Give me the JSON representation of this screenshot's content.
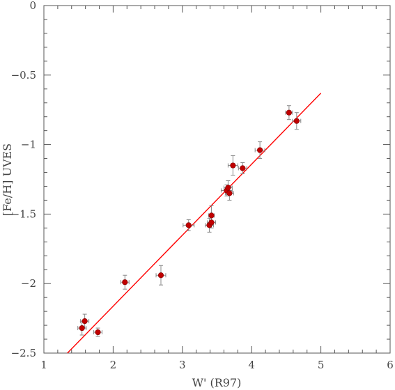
{
  "chart_data": {
    "type": "scatter",
    "title": "",
    "xlabel": "W' (R97)",
    "ylabel": "[Fe/H] UVES",
    "xlim": [
      1,
      6
    ],
    "ylim": [
      -2.5,
      0
    ],
    "grid": false,
    "x_ticks": [
      1,
      2,
      3,
      4,
      5,
      6
    ],
    "y_ticks": [
      0,
      -0.5,
      -1,
      -1.5,
      -2,
      -2.5
    ],
    "x_tick_labels": [
      "1",
      "2",
      "3",
      "4",
      "5",
      "6"
    ],
    "y_tick_labels": [
      "0",
      "−0.5",
      "−1",
      "−1.5",
      "−2",
      "−2.5"
    ],
    "colors": {
      "point": "#c00000",
      "line": "#ff0000",
      "errorbar": "#888888",
      "axis": "#555555"
    },
    "series": [
      {
        "points": [
          {
            "x": 1.55,
            "y": -2.32,
            "xerr": 0.06,
            "yerr": 0.05
          },
          {
            "x": 1.59,
            "y": -2.27,
            "xerr": 0.06,
            "yerr": 0.05
          },
          {
            "x": 1.78,
            "y": -2.35,
            "xerr": 0.06,
            "yerr": 0.03
          },
          {
            "x": 2.17,
            "y": -1.99,
            "xerr": 0.06,
            "yerr": 0.05
          },
          {
            "x": 2.69,
            "y": -1.94,
            "xerr": 0.07,
            "yerr": 0.07
          },
          {
            "x": 3.09,
            "y": -1.58,
            "xerr": 0.08,
            "yerr": 0.04
          },
          {
            "x": 3.39,
            "y": -1.58,
            "xerr": 0.06,
            "yerr": 0.05
          },
          {
            "x": 3.42,
            "y": -1.51,
            "xerr": 0.04,
            "yerr": 0.07
          },
          {
            "x": 3.42,
            "y": -1.56,
            "xerr": 0.06,
            "yerr": 0.04
          },
          {
            "x": 3.64,
            "y": -1.33,
            "xerr": 0.08,
            "yerr": 0.04
          },
          {
            "x": 3.66,
            "y": -1.31,
            "xerr": 0.06,
            "yerr": 0.05
          },
          {
            "x": 3.68,
            "y": -1.35,
            "xerr": 0.06,
            "yerr": 0.05
          },
          {
            "x": 3.73,
            "y": -1.15,
            "xerr": 0.07,
            "yerr": 0.07
          },
          {
            "x": 3.87,
            "y": -1.17,
            "xerr": 0.06,
            "yerr": 0.04
          },
          {
            "x": 4.12,
            "y": -1.04,
            "xerr": 0.07,
            "yerr": 0.06
          },
          {
            "x": 4.54,
            "y": -0.77,
            "xerr": 0.05,
            "yerr": 0.05
          },
          {
            "x": 4.65,
            "y": -0.83,
            "xerr": 0.06,
            "yerr": 0.06
          }
        ]
      }
    ],
    "fit_line": {
      "x": [
        1.34,
        5.0
      ],
      "y": [
        -2.5,
        -0.63
      ]
    }
  }
}
